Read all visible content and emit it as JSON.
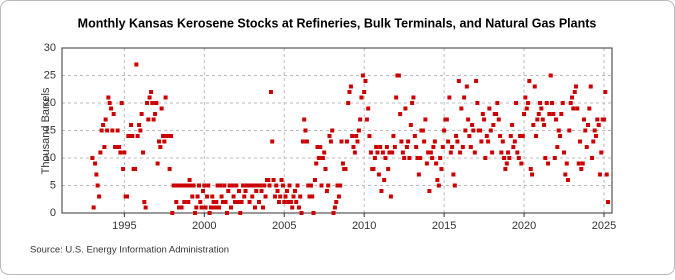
{
  "chart_data": {
    "type": "scatter",
    "title": "Monthly Kansas Kerosene Stocks at Refineries, Bulk Terminals, and Natural Gas Plants",
    "y_label": "Thousand Barrels",
    "source": "Source: U.S. Energy Information Administration",
    "color": "#cc0000",
    "grid": true,
    "xlim": [
      1991.1,
      2025.5
    ],
    "xticks": [
      1995,
      2000,
      2005,
      2010,
      2015,
      2020,
      2025
    ],
    "ylim": [
      0,
      30
    ],
    "yticks": [
      0,
      5,
      10,
      15,
      20,
      25,
      30
    ],
    "x": [
      1993,
      1993.08,
      1993.17,
      1993.25,
      1993.33,
      1993.42,
      1993.5,
      1993.58,
      1993.67,
      1993.75,
      1993.83,
      1993.92,
      1994,
      1994.08,
      1994.17,
      1994.25,
      1994.33,
      1994.42,
      1994.5,
      1994.58,
      1994.67,
      1994.75,
      1994.83,
      1994.92,
      1995,
      1995.08,
      1995.17,
      1995.25,
      1995.33,
      1995.42,
      1995.5,
      1995.58,
      1995.67,
      1995.75,
      1995.83,
      1995.92,
      1996,
      1996.08,
      1996.17,
      1996.25,
      1996.33,
      1996.42,
      1996.5,
      1996.58,
      1996.67,
      1996.75,
      1996.83,
      1996.92,
      1997,
      1997.08,
      1997.17,
      1997.25,
      1997.33,
      1997.42,
      1997.5,
      1997.58,
      1997.67,
      1997.75,
      1997.83,
      1997.92,
      1998,
      1998.08,
      1998.17,
      1998.25,
      1998.33,
      1998.42,
      1998.5,
      1998.58,
      1998.67,
      1998.75,
      1998.83,
      1998.92,
      1999,
      1999.08,
      1999.17,
      1999.25,
      1999.33,
      1999.42,
      1999.5,
      1999.58,
      1999.67,
      1999.75,
      1999.83,
      1999.92,
      2000,
      2000.08,
      2000.17,
      2000.25,
      2000.33,
      2000.42,
      2000.5,
      2000.58,
      2000.67,
      2000.75,
      2000.83,
      2000.92,
      2001,
      2001.08,
      2001.17,
      2001.25,
      2001.33,
      2001.42,
      2001.5,
      2001.58,
      2001.67,
      2001.75,
      2001.83,
      2001.92,
      2002,
      2002.08,
      2002.17,
      2002.25,
      2002.33,
      2002.42,
      2002.5,
      2002.58,
      2002.67,
      2002.75,
      2002.83,
      2002.92,
      2003,
      2003.08,
      2003.17,
      2003.25,
      2003.33,
      2003.42,
      2003.5,
      2003.58,
      2003.67,
      2003.75,
      2003.83,
      2003.92,
      2004,
      2004.08,
      2004.17,
      2004.25,
      2004.33,
      2004.42,
      2004.5,
      2004.58,
      2004.67,
      2004.75,
      2004.83,
      2004.92,
      2005,
      2005.08,
      2005.17,
      2005.25,
      2005.33,
      2005.42,
      2005.5,
      2005.58,
      2005.67,
      2005.75,
      2005.83,
      2005.92,
      2006,
      2006.08,
      2006.17,
      2006.25,
      2006.33,
      2006.42,
      2006.5,
      2006.58,
      2006.67,
      2006.75,
      2006.83,
      2006.92,
      2007,
      2007.08,
      2007.17,
      2007.25,
      2007.33,
      2007.42,
      2007.5,
      2007.58,
      2007.67,
      2007.75,
      2007.83,
      2007.92,
      2008,
      2008.08,
      2008.17,
      2008.25,
      2008.33,
      2008.42,
      2008.5,
      2008.58,
      2008.67,
      2008.75,
      2008.83,
      2008.92,
      2009,
      2009.08,
      2009.17,
      2009.25,
      2009.33,
      2009.42,
      2009.5,
      2009.58,
      2009.67,
      2009.75,
      2009.83,
      2009.92,
      2010,
      2010.08,
      2010.17,
      2010.25,
      2010.33,
      2010.42,
      2010.5,
      2010.58,
      2010.67,
      2010.75,
      2010.83,
      2010.92,
      2011,
      2011.08,
      2011.17,
      2011.25,
      2011.33,
      2011.42,
      2011.5,
      2011.58,
      2011.67,
      2011.75,
      2011.83,
      2011.92,
      2012,
      2012.08,
      2012.17,
      2012.25,
      2012.33,
      2012.42,
      2012.5,
      2012.58,
      2012.67,
      2012.75,
      2012.83,
      2012.92,
      2013,
      2013.08,
      2013.17,
      2013.25,
      2013.33,
      2013.42,
      2013.5,
      2013.58,
      2013.67,
      2013.75,
      2013.83,
      2013.92,
      2014,
      2014.08,
      2014.17,
      2014.25,
      2014.33,
      2014.42,
      2014.5,
      2014.58,
      2014.67,
      2014.75,
      2014.83,
      2014.92,
      2015,
      2015.08,
      2015.17,
      2015.25,
      2015.33,
      2015.42,
      2015.5,
      2015.58,
      2015.67,
      2015.75,
      2015.83,
      2015.92,
      2016,
      2016.08,
      2016.17,
      2016.25,
      2016.33,
      2016.42,
      2016.5,
      2016.58,
      2016.67,
      2016.75,
      2016.83,
      2016.92,
      2017,
      2017.08,
      2017.17,
      2017.25,
      2017.33,
      2017.42,
      2017.5,
      2017.58,
      2017.67,
      2017.75,
      2017.83,
      2017.92,
      2018,
      2018.08,
      2018.17,
      2018.25,
      2018.33,
      2018.42,
      2018.5,
      2018.58,
      2018.67,
      2018.75,
      2018.83,
      2018.92,
      2019,
      2019.08,
      2019.17,
      2019.25,
      2019.33,
      2019.42,
      2019.5,
      2019.58,
      2019.67,
      2019.75,
      2019.83,
      2019.92,
      2020,
      2020.08,
      2020.17,
      2020.25,
      2020.33,
      2020.42,
      2020.5,
      2020.58,
      2020.67,
      2020.75,
      2020.83,
      2020.92,
      2021,
      2021.08,
      2021.17,
      2021.25,
      2021.33,
      2021.42,
      2021.5,
      2021.58,
      2021.67,
      2021.75,
      2021.83,
      2021.92,
      2022,
      2022.08,
      2022.17,
      2022.25,
      2022.33,
      2022.42,
      2022.5,
      2022.58,
      2022.67,
      2022.75,
      2022.83,
      2022.92,
      2023,
      2023.08,
      2023.17,
      2023.25,
      2023.33,
      2023.42,
      2023.5,
      2023.58,
      2023.67,
      2023.75,
      2023.83,
      2023.92,
      2024,
      2024.08,
      2024.17,
      2024.25,
      2024.33,
      2024.42,
      2024.5,
      2024.58,
      2024.67,
      2024.75,
      2024.83,
      2024.92,
      2025,
      2025.08,
      2025.17,
      2025.25
    ],
    "values": [
      10,
      1,
      9,
      7,
      5,
      3,
      11,
      15,
      16,
      12,
      17,
      15,
      21,
      20,
      19,
      15,
      18,
      12,
      12,
      15,
      12,
      11,
      20,
      8,
      11,
      3,
      3,
      14,
      14,
      16,
      14,
      8,
      8,
      27,
      14,
      16,
      15,
      18,
      11,
      2,
      1,
      20,
      17,
      21,
      22,
      20,
      17,
      18,
      20,
      9,
      13,
      12,
      19,
      14,
      13,
      21,
      14,
      14,
      8,
      14,
      0,
      5,
      5,
      2,
      5,
      1,
      5,
      1,
      5,
      2,
      5,
      5,
      2,
      6,
      5,
      3,
      5,
      0,
      1,
      3,
      5,
      2,
      1,
      4,
      5,
      1,
      3,
      5,
      0,
      1,
      3,
      2,
      1,
      2,
      5,
      1,
      5,
      3,
      2,
      5,
      2,
      0,
      4,
      5,
      1,
      5,
      3,
      2,
      5,
      2,
      4,
      0,
      2,
      5,
      3,
      4,
      5,
      5,
      2,
      5,
      3,
      5,
      1,
      4,
      5,
      2,
      5,
      4,
      1,
      5,
      3,
      6,
      6,
      5,
      22,
      13,
      6,
      3,
      5,
      4,
      2,
      3,
      6,
      5,
      2,
      3,
      4,
      2,
      5,
      2,
      1,
      3,
      4,
      2,
      5,
      1,
      3,
      0,
      13,
      17,
      15,
      13,
      5,
      3,
      5,
      3,
      0,
      6,
      9,
      12,
      10,
      12,
      5,
      10,
      11,
      8,
      4,
      5,
      14,
      13,
      15,
      0,
      1,
      2,
      5,
      3,
      5,
      13,
      9,
      8,
      8,
      13,
      20,
      22,
      23,
      14,
      12,
      11,
      14,
      13,
      15,
      17,
      21,
      25,
      22,
      24,
      17,
      19,
      14,
      11,
      8,
      8,
      10,
      12,
      11,
      7,
      12,
      4,
      11,
      6,
      10,
      12,
      8,
      11,
      3,
      11,
      14,
      12,
      21,
      25,
      25,
      18,
      13,
      11,
      10,
      19,
      12,
      13,
      10,
      16,
      20,
      21,
      14,
      12,
      10,
      7,
      10,
      15,
      15,
      13,
      17,
      9,
      11,
      4,
      11,
      10,
      12,
      13,
      9,
      6,
      5,
      10,
      8,
      12,
      15,
      17,
      17,
      13,
      21,
      11,
      12,
      7,
      5,
      14,
      13,
      24,
      11,
      19,
      12,
      21,
      15,
      23,
      17,
      14,
      12,
      16,
      15,
      11,
      24,
      20,
      15,
      15,
      13,
      18,
      17,
      10,
      14,
      13,
      19,
      15,
      11,
      16,
      18,
      18,
      20,
      17,
      14,
      11,
      13,
      10,
      8,
      9,
      11,
      10,
      14,
      16,
      12,
      13,
      20,
      11,
      10,
      14,
      9,
      14,
      18,
      21,
      19,
      20,
      24,
      8,
      7,
      16,
      23,
      14,
      17,
      18,
      20,
      19,
      17,
      16,
      10,
      20,
      9,
      18,
      25,
      20,
      18,
      10,
      17,
      12,
      15,
      14,
      18,
      20,
      11,
      7,
      9,
      6,
      15,
      20,
      21,
      19,
      22,
      23,
      19,
      9,
      13,
      8,
      9,
      17,
      15,
      12,
      16,
      19,
      23,
      10,
      13,
      15,
      14,
      17,
      16,
      7,
      11,
      17,
      17,
      22,
      7,
      2
    ]
  }
}
